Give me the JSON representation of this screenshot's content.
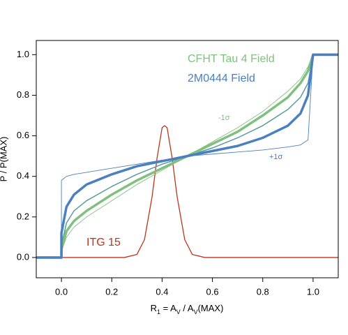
{
  "chart_data": {
    "type": "line",
    "ylabel": "P / P(MAX)",
    "xlabel_parts": [
      {
        "text": "R"
      },
      {
        "text": "1",
        "sub": true
      },
      {
        "text": " = A"
      },
      {
        "text": "V",
        "sub": true
      },
      {
        "text": " / A"
      },
      {
        "text": "V",
        "sub": true
      },
      {
        "text": "(MAX)"
      }
    ],
    "xlim": [
      -0.1,
      1.1
    ],
    "ylim": [
      -0.1,
      1.07
    ],
    "xticks": [
      {
        "value": 0,
        "label": "0.0"
      },
      0.2,
      0.4,
      0.6,
      0.8,
      {
        "value": 1,
        "label": "1.0"
      }
    ],
    "yticks": [
      {
        "value": 0,
        "label": "0.0"
      },
      0.2,
      0.4,
      0.6,
      0.8,
      {
        "value": 1,
        "label": "1.0"
      }
    ],
    "series": [
      {
        "name": "ITG 15",
        "color": "#c0321e",
        "width": 1.3,
        "x": [
          -0.1,
          0,
          0.25,
          0.3,
          0.33,
          0.36,
          0.38,
          0.4,
          0.41,
          0.42,
          0.44,
          0.46,
          0.49,
          0.52,
          0.57,
          0.7,
          1.1
        ],
        "values": [
          0,
          0,
          0,
          0.015,
          0.088,
          0.298,
          0.49,
          0.64,
          0.65,
          0.64,
          0.49,
          0.298,
          0.088,
          0.015,
          0,
          0,
          0
        ]
      },
      {
        "name": "+1σ",
        "color": "#4a7fc1",
        "width": 0.9,
        "x": [
          -0.1,
          0,
          0,
          0.02,
          0.05,
          0.1,
          0.2,
          0.3,
          0.4,
          0.5,
          0.6,
          0.7,
          0.8,
          0.9,
          0.95,
          0.98,
          1,
          1,
          1.1
        ],
        "values": [
          0,
          0,
          0.38,
          0.4,
          0.41,
          0.42,
          0.44,
          0.46,
          0.48,
          0.5,
          0.51,
          0.52,
          0.53,
          0.545,
          0.555,
          0.58,
          1,
          1,
          1
        ]
      },
      {
        "name": "-1σ",
        "color": "#7fc07f",
        "width": 0.9,
        "x": [
          -0.1,
          0,
          0,
          0.02,
          0.05,
          0.1,
          0.2,
          0.3,
          0.4,
          0.5,
          0.6,
          0.7,
          0.8,
          0.9,
          0.95,
          0.98,
          1,
          1,
          1.1
        ],
        "values": [
          0,
          0,
          0.03,
          0.1,
          0.15,
          0.2,
          0.28,
          0.36,
          0.43,
          0.5,
          0.57,
          0.64,
          0.72,
          0.82,
          0.88,
          0.94,
          1,
          1,
          1
        ]
      },
      {
        "color": "#5b9aa0",
        "width": 1.5,
        "x": [
          -0.1,
          0,
          0,
          0.02,
          0.05,
          0.1,
          0.2,
          0.3,
          0.4,
          0.5,
          0.6,
          0.7,
          0.8,
          0.9,
          0.95,
          0.98,
          1,
          1,
          1.1
        ],
        "values": [
          0,
          0,
          0.06,
          0.17,
          0.23,
          0.28,
          0.35,
          0.41,
          0.46,
          0.5,
          0.54,
          0.59,
          0.65,
          0.73,
          0.79,
          0.86,
          1,
          1,
          1
        ]
      },
      {
        "name": "CFHT Tau 4 Field",
        "color": "#7fc07f",
        "width": 3.5,
        "x": [
          -0.1,
          0,
          0,
          0.02,
          0.05,
          0.1,
          0.2,
          0.3,
          0.4,
          0.5,
          0.6,
          0.7,
          0.8,
          0.9,
          0.95,
          0.98,
          1,
          1,
          1.1
        ],
        "values": [
          0,
          0,
          0.04,
          0.13,
          0.18,
          0.23,
          0.31,
          0.38,
          0.44,
          0.5,
          0.56,
          0.62,
          0.7,
          0.79,
          0.86,
          0.92,
          1,
          1,
          1
        ]
      },
      {
        "name": "2M0444 Field",
        "color": "#4a7fc1",
        "width": 3.5,
        "x": [
          -0.1,
          0,
          0,
          0.02,
          0.05,
          0.1,
          0.2,
          0.3,
          0.4,
          0.5,
          0.6,
          0.7,
          0.8,
          0.9,
          0.95,
          0.98,
          1,
          1,
          1.1
        ],
        "values": [
          0,
          0,
          0.12,
          0.25,
          0.31,
          0.36,
          0.41,
          0.45,
          0.475,
          0.5,
          0.525,
          0.55,
          0.59,
          0.65,
          0.71,
          0.8,
          1,
          1,
          1
        ]
      }
    ]
  }
}
